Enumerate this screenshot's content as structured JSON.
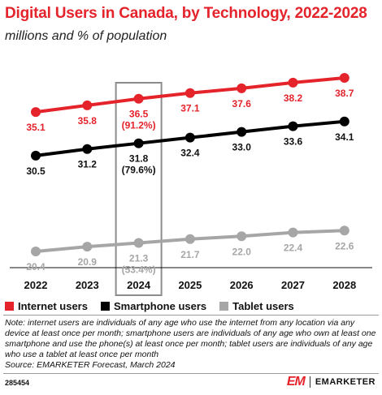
{
  "header": {
    "title": "Digital Users in Canada, by Technology, 2022-2028",
    "subtitle": "millions and % of population"
  },
  "chart_data": {
    "type": "line",
    "title": "Digital Users in Canada, by Technology, 2022-2028",
    "subtitle": "millions and % of population",
    "categories": [
      "2022",
      "2023",
      "2024",
      "2025",
      "2026",
      "2027",
      "2028"
    ],
    "series": [
      {
        "name": "Internet users",
        "color": "#e4232b",
        "values": [
          35.1,
          35.8,
          36.5,
          37.1,
          37.6,
          38.2,
          38.7
        ],
        "labels": [
          "35.1",
          "35.8",
          "36.5\n(91.2%)",
          "37.1",
          "37.6",
          "38.2",
          "38.7"
        ]
      },
      {
        "name": "Smartphone users",
        "color": "#000000",
        "values": [
          30.5,
          31.2,
          31.8,
          32.4,
          33.0,
          33.6,
          34.1
        ],
        "labels": [
          "30.5",
          "31.2",
          "31.8\n(79.6%)",
          "32.4",
          "33.0",
          "33.6",
          "34.1"
        ]
      },
      {
        "name": "Tablet users",
        "color": "#a6a6a6",
        "values": [
          20.4,
          20.9,
          21.3,
          21.7,
          22.0,
          22.4,
          22.6
        ],
        "labels": [
          "20.4",
          "20.9",
          "21.3\n(53.4%)",
          "21.7",
          "22.0",
          "22.4",
          "22.6"
        ]
      }
    ],
    "highlight_category": "2024",
    "grid": false,
    "legend_position": "bottom-left"
  },
  "legend": [
    {
      "label": "Internet users",
      "color": "#e4232b"
    },
    {
      "label": "Smartphone users",
      "color": "#000000"
    },
    {
      "label": "Tablet users",
      "color": "#a6a6a6"
    }
  ],
  "note": "Note: internet users are individuals of any age who use the internet from any location via any device at least once per month; smartphone users are individuals of any age who own at least one smartphone and use the phone(s) at least once per month; tablet users are individuals of any age who use a tablet at least once per month",
  "source": "Source: EMARKETER Forecast, March 2024",
  "footer": {
    "chart_id": "285454",
    "brand_logo": "EM",
    "brand_name": "EMARKETER"
  }
}
